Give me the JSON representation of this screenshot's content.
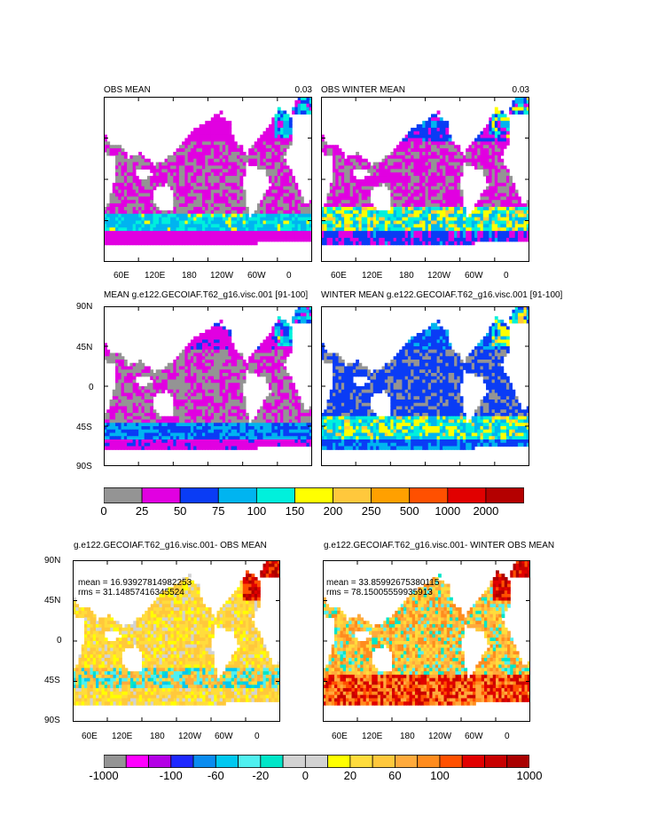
{
  "panels": [
    {
      "title": "OBS MEAN",
      "value": "0.03",
      "scheme": "mean",
      "var": 0
    },
    {
      "title": "OBS WINTER MEAN",
      "value": "0.03",
      "scheme": "mean",
      "var": 1
    },
    {
      "title": "MEAN g.e122.GECOIAF.T62_g16.visc.001 [91-100]",
      "value": "",
      "scheme": "mean",
      "var": 2
    },
    {
      "title": "WINTER MEAN g.e122.GECOIAF.T62_g16.visc.001 [91-100]",
      "value": "",
      "scheme": "mean",
      "var": 3
    },
    {
      "title": "g.e122.GECOIAF.T62_g16.visc.001- OBS MEAN",
      "value": "",
      "scheme": "diff",
      "var": 4,
      "stats": {
        "mean": "mean = 16.939278149822​53",
        "rms": "rms = 31.14857416345524"
      }
    },
    {
      "title": "g.e122.GECOIAF.T62_g16.visc.001- WINTER OBS MEAN",
      "value": "",
      "scheme": "diff",
      "var": 5,
      "stats": {
        "mean": "mean = 33.85992675380115",
        "rms": "rms = 78.15005559935913"
      }
    }
  ],
  "lat_labels": [
    "90N",
    "45N",
    "0",
    "45S",
    "90S"
  ],
  "lon_labels": [
    "60E",
    "120E",
    "180",
    "120W",
    "60W",
    "0"
  ],
  "colorbar_mean": {
    "labels": [
      "0",
      "25",
      "50",
      "75",
      "100",
      "150",
      "200",
      "250",
      "500",
      "1000",
      "2000"
    ],
    "colors": [
      "#949494",
      "#e100e1",
      "#0a3cf5",
      "#00b4f0",
      "#00f0dc",
      "#ffff00",
      "#ffc83c",
      "#ffa000",
      "#ff5000",
      "#e10000",
      "#b40000"
    ]
  },
  "colorbar_diff": {
    "labels": [
      "-1000",
      "-100",
      "-60",
      "-20",
      "0",
      "20",
      "60",
      "100",
      "1000"
    ],
    "colors": [
      "#949494",
      "#ff00ff",
      "#b400e6",
      "#1e28ff",
      "#0a8cf0",
      "#00c8f0",
      "#50f0f0",
      "#00e6c8",
      "#d2d2d2",
      "#d2d2d2",
      "#ffff00",
      "#ffdc3c",
      "#ffc83c",
      "#ffaa3c",
      "#ff8c1e",
      "#ff5000",
      "#e10000",
      "#c80000",
      "#aa0000"
    ]
  },
  "colors": {
    "land": "#ffffff",
    "missing": "#949494"
  }
}
